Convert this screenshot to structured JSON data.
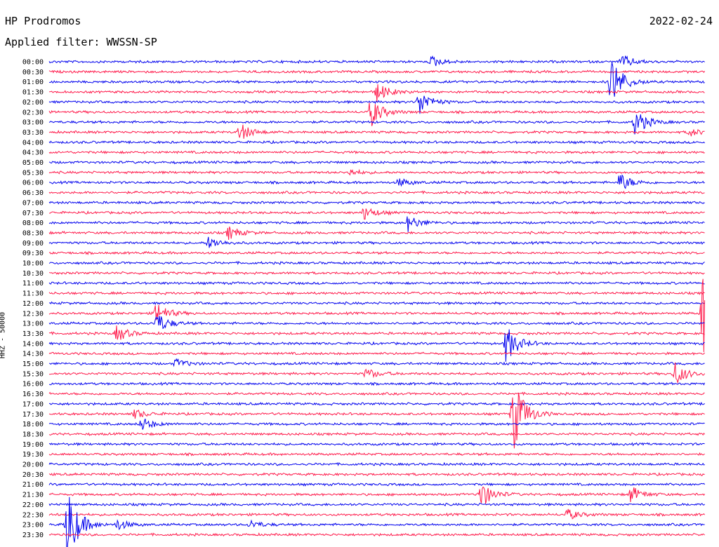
{
  "header": {
    "station": "HP Prodromos",
    "date": "2022-02-24",
    "filter": "Applied filter: WWSSN-SP"
  },
  "chart_data": {
    "type": "line",
    "title": "HP Prodromos",
    "subtitle": "Applied filter: WWSSN-SP",
    "ylabel": "HHZ - 50000",
    "trace_colors": [
      "#0000ee",
      "#ff1a4b"
    ],
    "tick_labels": [
      "00:00",
      "00:30",
      "01:00",
      "01:30",
      "02:00",
      "02:30",
      "03:00",
      "03:30",
      "04:00",
      "04:30",
      "05:00",
      "05:30",
      "06:00",
      "06:30",
      "07:00",
      "07:30",
      "08:00",
      "08:30",
      "09:00",
      "09:30",
      "10:00",
      "10:30",
      "11:00",
      "11:30",
      "12:00",
      "12:30",
      "13:00",
      "13:30",
      "14:00",
      "14:30",
      "15:00",
      "15:30",
      "16:00",
      "16:30",
      "17:00",
      "17:30",
      "18:00",
      "18:30",
      "19:00",
      "19:30",
      "20:00",
      "20:30",
      "21:00",
      "21:30",
      "22:00",
      "22:30",
      "23:00",
      "23:30"
    ],
    "x_range_minutes": [
      0,
      30
    ],
    "events": [
      {
        "row": "00:00",
        "minute": 17.5,
        "amp": 8
      },
      {
        "row": "00:00",
        "minute": 26.2,
        "amp": 10
      },
      {
        "row": "01:00",
        "minute": 25.7,
        "amp": 40
      },
      {
        "row": "02:00",
        "minute": 16.9,
        "amp": 20
      },
      {
        "row": "01:30",
        "minute": 15.0,
        "amp": 14
      },
      {
        "row": "02:30",
        "minute": 14.7,
        "amp": 22
      },
      {
        "row": "03:00",
        "minute": 26.8,
        "amp": 20
      },
      {
        "row": "03:30",
        "minute": 8.7,
        "amp": 14
      },
      {
        "row": "03:30",
        "minute": 29.3,
        "amp": 6
      },
      {
        "row": "06:00",
        "minute": 26.1,
        "amp": 14
      },
      {
        "row": "06:00",
        "minute": 16.0,
        "amp": 6
      },
      {
        "row": "05:30",
        "minute": 13.7,
        "amp": 5
      },
      {
        "row": "07:30",
        "minute": 14.4,
        "amp": 10
      },
      {
        "row": "08:00",
        "minute": 16.4,
        "amp": 12
      },
      {
        "row": "08:30",
        "minute": 8.2,
        "amp": 10
      },
      {
        "row": "09:00",
        "minute": 7.3,
        "amp": 9
      },
      {
        "row": "12:30",
        "minute": 4.9,
        "amp": 16
      },
      {
        "row": "13:00",
        "minute": 4.9,
        "amp": 16
      },
      {
        "row": "13:30",
        "minute": 3.1,
        "amp": 12
      },
      {
        "row": "14:00",
        "minute": 20.9,
        "amp": 28
      },
      {
        "row": "15:30",
        "minute": 28.6,
        "amp": 18
      },
      {
        "row": "15:30",
        "minute": 14.5,
        "amp": 8
      },
      {
        "row": "15:00",
        "minute": 5.8,
        "amp": 7
      },
      {
        "row": "17:30",
        "minute": 21.2,
        "amp": 60
      },
      {
        "row": "18:00",
        "minute": 4.2,
        "amp": 10
      },
      {
        "row": "17:30",
        "minute": 3.9,
        "amp": 7
      },
      {
        "row": "21:30",
        "minute": 19.7,
        "amp": 22
      },
      {
        "row": "21:30",
        "minute": 26.6,
        "amp": 12
      },
      {
        "row": "22:30",
        "minute": 23.7,
        "amp": 8
      },
      {
        "row": "23:00",
        "minute": 0.8,
        "amp": 60
      },
      {
        "row": "23:00",
        "minute": 3.1,
        "amp": 8
      },
      {
        "row": "23:00",
        "minute": 9.2,
        "amp": 6
      },
      {
        "row": "12:30",
        "minute": 29.9,
        "amp": 80
      }
    ]
  }
}
